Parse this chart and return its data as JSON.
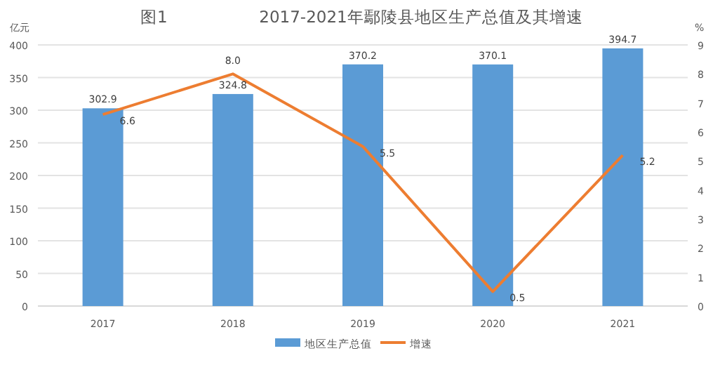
{
  "chart_data": {
    "type": "bar",
    "title": "2017-2021年鄢陵县地区生产总值及其增速",
    "annotations": [
      "图1"
    ],
    "ylabel": "亿元",
    "y2label": "%",
    "categories": [
      "2017",
      "2018",
      "2019",
      "2020",
      "2021"
    ],
    "series": [
      {
        "name": "地区生产总值",
        "color": "#5b9bd5",
        "values": [
          302.9,
          324.8,
          370.2,
          370.1,
          394.7
        ]
      },
      {
        "name": "增速",
        "type": "line",
        "axis": "y2",
        "color": "#ed7d31",
        "values": [
          6.6,
          8.0,
          5.5,
          0.5,
          5.2
        ],
        "value_labels": [
          "6.6",
          "8.0",
          "5.5",
          "0.5",
          "5.2"
        ]
      }
    ],
    "ylim": [
      0,
      400
    ],
    "yticks": [
      0,
      50,
      100,
      150,
      200,
      250,
      300,
      350,
      400
    ],
    "y2lim": [
      0,
      9
    ],
    "y2ticks": [
      0,
      1,
      2,
      3,
      4,
      5,
      6,
      7,
      8,
      9
    ],
    "grid": "y",
    "legend": "bottom",
    "data_labels": true,
    "marker": "none"
  }
}
